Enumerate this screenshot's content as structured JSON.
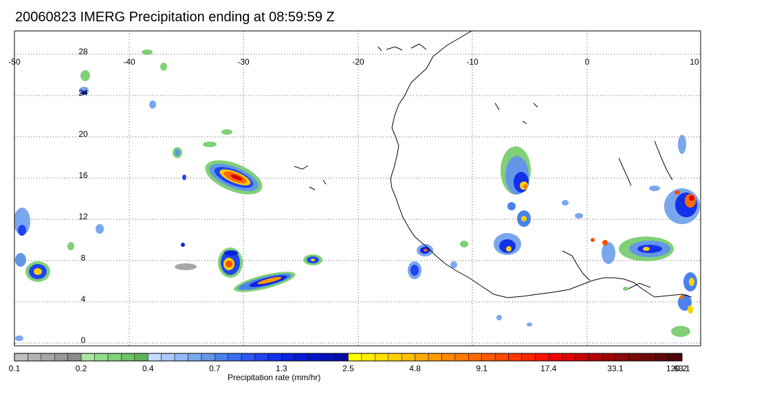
{
  "title": "20060823 IMERG Precipitation ending at 08:59:59 Z",
  "map": {
    "lon_range": [
      -50,
      10
    ],
    "lat_range": [
      -1,
      31
    ],
    "lon_ticks": [
      "-50",
      "-40",
      "-30",
      "-20",
      "-10",
      "0",
      "10"
    ],
    "lat_ticks": [
      "28",
      "24",
      "20",
      "16",
      "12",
      "8",
      "4",
      "0"
    ],
    "grid": "dotted",
    "coastline_color": "#000000"
  },
  "colorbar": {
    "label": "Precipitation rate (mm/hr)",
    "tick_labels": [
      "0.1",
      "0.2",
      "0.4",
      "0.7",
      "1.3",
      "2.5",
      "4.8",
      "9.1",
      "17.4",
      "33.1",
      "63.1",
      "120.2"
    ],
    "bins_per_interval": 5,
    "colors": [
      "#c0c0c0",
      "#b3b3b3",
      "#a6a6a6",
      "#999999",
      "#8c8c8c",
      "#a8e6a0",
      "#93dc8a",
      "#80d077",
      "#6ec266",
      "#5cb45a",
      "#c6d9ff",
      "#acc9fb",
      "#92b8f5",
      "#7aa6ee",
      "#6496e8",
      "#4a82ec",
      "#3a6ef0",
      "#2c59f2",
      "#1f44f0",
      "#1431ea",
      "#0a22e0",
      "#061ad6",
      "#0414c8",
      "#0210b8",
      "#000ca8",
      "#ffff00",
      "#fff000",
      "#ffe000",
      "#ffd000",
      "#ffc000",
      "#ffab00",
      "#ff9a00",
      "#ff8a00",
      "#ff7a00",
      "#ff6a00",
      "#ff5a00",
      "#ff4a00",
      "#ff3800",
      "#ff2600",
      "#ff1400",
      "#f00000",
      "#dc0000",
      "#c80000",
      "#b40000",
      "#a00000",
      "#8c0a0a",
      "#7a0a0a",
      "#6c0a0a",
      "#5e0808",
      "#500606"
    ]
  }
}
